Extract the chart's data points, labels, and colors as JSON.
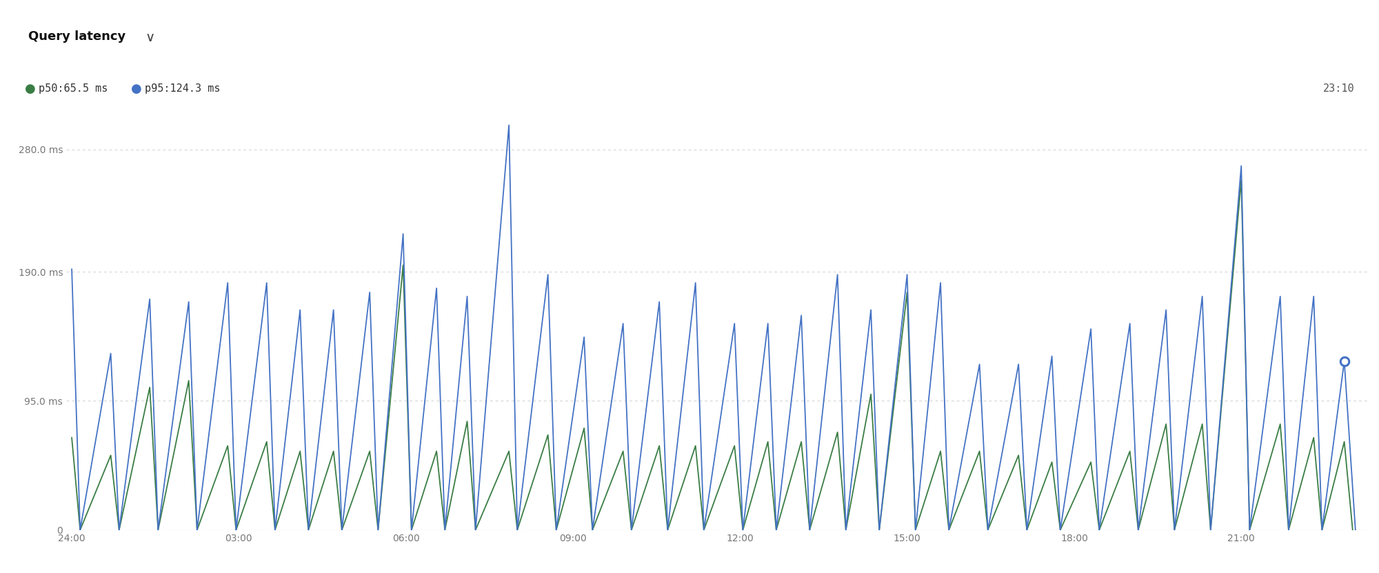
{
  "title": "Query latency",
  "legend_p50": "p50:65.5 ms",
  "legend_p95": "p95:124.3 ms",
  "timestamp": "23:10",
  "y_ticks": [
    0,
    95.0,
    190.0,
    280.0
  ],
  "y_labels": [
    "0",
    "95.0 ms",
    "190.0 ms",
    "280.0 ms"
  ],
  "x_ticks": [
    0,
    3,
    6,
    9,
    12,
    15,
    18,
    21
  ],
  "x_labels": [
    "24:00",
    "03:00",
    "06:00",
    "09:00",
    "12:00",
    "15:00",
    "18:00",
    "21:00"
  ],
  "color_p50": "#3a7d44",
  "color_p95": "#4472c4",
  "background_color": "#ffffff",
  "grid_color": "#d0d0d0",
  "p50_peaks": [
    [
      0.0,
      68
    ],
    [
      0.15,
      0
    ],
    [
      0.7,
      55
    ],
    [
      0.85,
      0
    ],
    [
      1.4,
      105
    ],
    [
      1.55,
      0
    ],
    [
      2.1,
      110
    ],
    [
      2.25,
      0
    ],
    [
      2.8,
      62
    ],
    [
      2.95,
      0
    ],
    [
      3.5,
      65
    ],
    [
      3.65,
      0
    ],
    [
      4.1,
      58
    ],
    [
      4.25,
      0
    ],
    [
      4.7,
      58
    ],
    [
      4.85,
      0
    ],
    [
      5.35,
      58
    ],
    [
      5.5,
      0
    ],
    [
      5.95,
      195
    ],
    [
      6.1,
      0
    ],
    [
      6.55,
      58
    ],
    [
      6.7,
      0
    ],
    [
      7.1,
      80
    ],
    [
      7.25,
      0
    ],
    [
      7.85,
      58
    ],
    [
      8.0,
      0
    ],
    [
      8.55,
      70
    ],
    [
      8.7,
      0
    ],
    [
      9.2,
      75
    ],
    [
      9.35,
      0
    ],
    [
      9.9,
      58
    ],
    [
      10.05,
      0
    ],
    [
      10.55,
      62
    ],
    [
      10.7,
      0
    ],
    [
      11.2,
      62
    ],
    [
      11.35,
      0
    ],
    [
      11.9,
      62
    ],
    [
      12.05,
      0
    ],
    [
      12.5,
      65
    ],
    [
      12.65,
      0
    ],
    [
      13.1,
      65
    ],
    [
      13.25,
      0
    ],
    [
      13.75,
      72
    ],
    [
      13.9,
      0
    ],
    [
      14.35,
      100
    ],
    [
      14.5,
      0
    ],
    [
      15.0,
      175
    ],
    [
      15.15,
      0
    ],
    [
      15.6,
      58
    ],
    [
      15.75,
      0
    ],
    [
      16.3,
      58
    ],
    [
      16.45,
      0
    ],
    [
      17.0,
      55
    ],
    [
      17.15,
      0
    ],
    [
      17.6,
      50
    ],
    [
      17.75,
      0
    ],
    [
      18.3,
      50
    ],
    [
      18.45,
      0
    ],
    [
      19.0,
      58
    ],
    [
      19.15,
      0
    ],
    [
      19.65,
      78
    ],
    [
      19.8,
      0
    ],
    [
      20.3,
      78
    ],
    [
      20.45,
      0
    ],
    [
      21.0,
      258
    ],
    [
      21.15,
      0
    ],
    [
      21.7,
      78
    ],
    [
      21.85,
      0
    ],
    [
      22.3,
      68
    ],
    [
      22.45,
      0
    ],
    [
      22.85,
      65
    ],
    [
      23.0,
      0
    ]
  ],
  "p95_peaks": [
    [
      0.0,
      192
    ],
    [
      0.15,
      0
    ],
    [
      0.7,
      130
    ],
    [
      0.85,
      0
    ],
    [
      1.4,
      170
    ],
    [
      1.55,
      0
    ],
    [
      2.1,
      168
    ],
    [
      2.25,
      0
    ],
    [
      2.8,
      182
    ],
    [
      2.95,
      0
    ],
    [
      3.5,
      182
    ],
    [
      3.65,
      0
    ],
    [
      4.1,
      162
    ],
    [
      4.25,
      0
    ],
    [
      4.7,
      162
    ],
    [
      4.85,
      0
    ],
    [
      5.35,
      175
    ],
    [
      5.5,
      0
    ],
    [
      5.95,
      218
    ],
    [
      6.1,
      0
    ],
    [
      6.55,
      178
    ],
    [
      6.7,
      0
    ],
    [
      7.1,
      172
    ],
    [
      7.25,
      0
    ],
    [
      7.85,
      298
    ],
    [
      8.0,
      0
    ],
    [
      8.55,
      188
    ],
    [
      8.7,
      0
    ],
    [
      9.2,
      142
    ],
    [
      9.35,
      0
    ],
    [
      9.9,
      152
    ],
    [
      10.05,
      0
    ],
    [
      10.55,
      168
    ],
    [
      10.7,
      0
    ],
    [
      11.2,
      182
    ],
    [
      11.35,
      0
    ],
    [
      11.9,
      152
    ],
    [
      12.05,
      0
    ],
    [
      12.5,
      152
    ],
    [
      12.65,
      0
    ],
    [
      13.1,
      158
    ],
    [
      13.25,
      0
    ],
    [
      13.75,
      188
    ],
    [
      13.9,
      0
    ],
    [
      14.35,
      162
    ],
    [
      14.5,
      0
    ],
    [
      15.0,
      188
    ],
    [
      15.15,
      0
    ],
    [
      15.6,
      182
    ],
    [
      15.75,
      0
    ],
    [
      16.3,
      122
    ],
    [
      16.45,
      0
    ],
    [
      17.0,
      122
    ],
    [
      17.15,
      0
    ],
    [
      17.6,
      128
    ],
    [
      17.75,
      0
    ],
    [
      18.3,
      148
    ],
    [
      18.45,
      0
    ],
    [
      19.0,
      152
    ],
    [
      19.15,
      0
    ],
    [
      19.65,
      162
    ],
    [
      19.8,
      0
    ],
    [
      20.3,
      172
    ],
    [
      20.45,
      0
    ],
    [
      21.0,
      268
    ],
    [
      21.15,
      0
    ],
    [
      21.7,
      172
    ],
    [
      21.85,
      0
    ],
    [
      22.3,
      172
    ],
    [
      22.45,
      0
    ],
    [
      22.85,
      124.3
    ],
    [
      23.05,
      0
    ]
  ],
  "dot_x": 22.85,
  "dot_y_p95": 124.3,
  "ylim": [
    0,
    310
  ],
  "xlim": [
    -0.1,
    23.3
  ]
}
